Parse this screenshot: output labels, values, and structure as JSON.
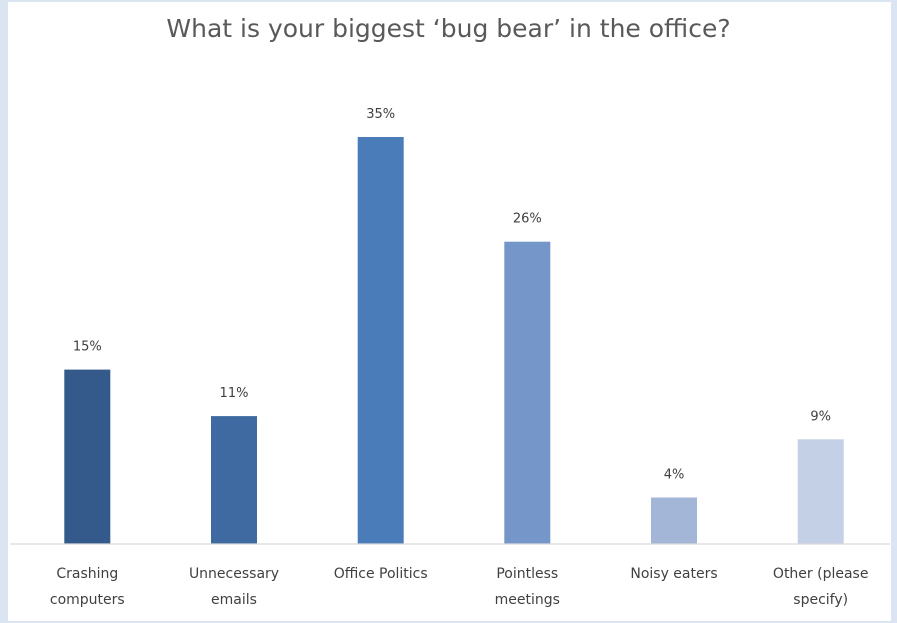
{
  "chart_data": {
    "type": "bar",
    "title": "What is your biggest ‘bug bear’ in the office?",
    "categories": [
      [
        "Crashing",
        "computers"
      ],
      [
        "Unnecessary",
        "emails"
      ],
      [
        "Office Politics"
      ],
      [
        "Pointless",
        "meetings"
      ],
      [
        "Noisy eaters"
      ],
      [
        "Other (please",
        "specify)"
      ]
    ],
    "values": [
      15,
      11,
      35,
      26,
      4,
      9
    ],
    "data_labels": [
      "15%",
      "11%",
      "35%",
      "26%",
      "4%",
      "9%"
    ],
    "colors": [
      "#335a8a",
      "#3f6aa1",
      "#4a7cba",
      "#7496c8",
      "#a4b6d7",
      "#c4d0e6"
    ],
    "value_unit": "%",
    "ylim": [
      0,
      35
    ],
    "grid": false,
    "legend": "none"
  }
}
